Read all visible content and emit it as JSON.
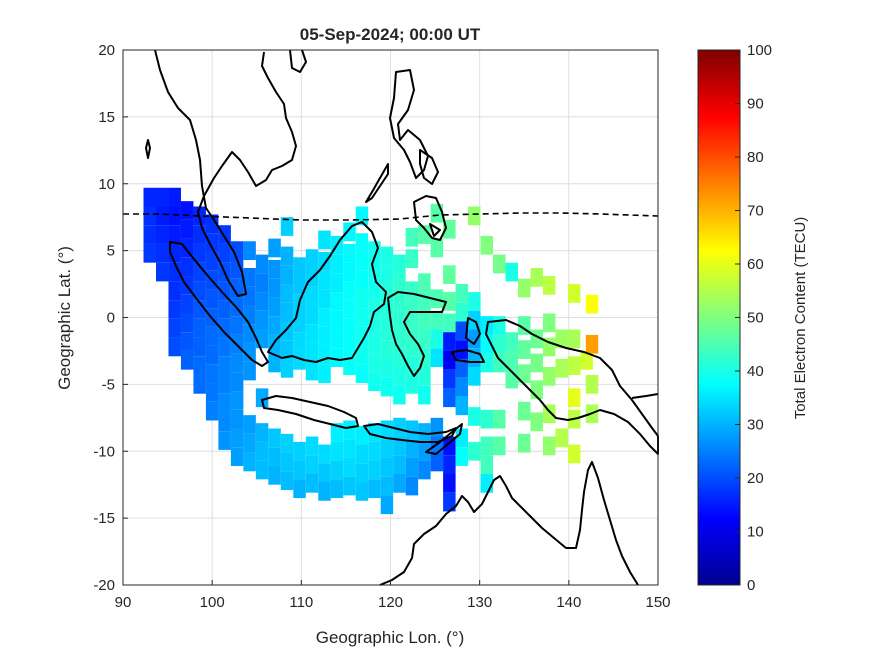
{
  "figure": {
    "title": "05-Sep-2024; 00:00 UT",
    "xlabel": "Geographic Lon. (°)",
    "ylabel": "Geographic Lat. (°)",
    "colorbar_label": "Total Electron Content (TECU)"
  },
  "chart_data": {
    "type": "heatmap",
    "title": "05-Sep-2024; 00:00 UT",
    "xlabel": "Geographic Lon. (°)",
    "ylabel": "Geographic Lat. (°)",
    "xlim": [
      90,
      150
    ],
    "ylim": [
      -20,
      20
    ],
    "xticks": [
      90,
      100,
      110,
      120,
      130,
      140,
      150
    ],
    "yticks": [
      20,
      15,
      10,
      5,
      0,
      -5,
      -10,
      -15,
      -20
    ],
    "grid": true,
    "colormap": "jet",
    "clim": [
      0,
      100
    ],
    "colorbar_ticks": [
      0,
      10,
      20,
      30,
      40,
      50,
      60,
      70,
      80,
      90,
      100
    ],
    "colorbar_label": "Total Electron Content (TECU)",
    "colorbar_placement": "right",
    "cell_size_deg": 1.4,
    "cells": [
      [
        93,
        9,
        16
      ],
      [
        93,
        7.6,
        17
      ],
      [
        93,
        6.2,
        17
      ],
      [
        93,
        4.8,
        18
      ],
      [
        94.4,
        9,
        16
      ],
      [
        94.4,
        7.6,
        15
      ],
      [
        94.4,
        6.2,
        16
      ],
      [
        94.4,
        4.8,
        17
      ],
      [
        94.4,
        3.4,
        18
      ],
      [
        95.8,
        9,
        15
      ],
      [
        95.8,
        7.6,
        14
      ],
      [
        95.8,
        6.2,
        15
      ],
      [
        95.8,
        4.8,
        16
      ],
      [
        95.8,
        3.4,
        17
      ],
      [
        95.8,
        2,
        17
      ],
      [
        95.8,
        0.6,
        18
      ],
      [
        95.8,
        -0.8,
        19
      ],
      [
        95.8,
        -2.2,
        20
      ],
      [
        97.2,
        8,
        14
      ],
      [
        97.2,
        6.6,
        15
      ],
      [
        97.2,
        5.2,
        16
      ],
      [
        97.2,
        3.8,
        17
      ],
      [
        97.2,
        2.4,
        18
      ],
      [
        97.2,
        1,
        19
      ],
      [
        97.2,
        -0.4,
        20
      ],
      [
        97.2,
        -1.8,
        21
      ],
      [
        97.2,
        -3.2,
        22
      ],
      [
        98.6,
        7.6,
        16
      ],
      [
        98.6,
        6.2,
        17
      ],
      [
        98.6,
        4.8,
        18
      ],
      [
        98.6,
        3.4,
        19
      ],
      [
        98.6,
        2,
        20
      ],
      [
        98.6,
        0.6,
        21
      ],
      [
        98.6,
        -0.8,
        22
      ],
      [
        98.6,
        -2.2,
        22
      ],
      [
        98.6,
        -3.6,
        23
      ],
      [
        98.6,
        -5,
        23
      ],
      [
        100,
        7,
        17
      ],
      [
        100,
        5.6,
        18
      ],
      [
        100,
        4.2,
        19
      ],
      [
        100,
        2.8,
        20
      ],
      [
        100,
        1.4,
        21
      ],
      [
        100,
        0,
        22
      ],
      [
        100,
        -1.4,
        23
      ],
      [
        100,
        -2.8,
        23
      ],
      [
        100,
        -4.2,
        24
      ],
      [
        100,
        -5.6,
        24
      ],
      [
        100,
        -7,
        25
      ],
      [
        101.4,
        6.2,
        18
      ],
      [
        101.4,
        4.8,
        19
      ],
      [
        101.4,
        3.4,
        20
      ],
      [
        101.4,
        2,
        21
      ],
      [
        101.4,
        0.6,
        22
      ],
      [
        101.4,
        -0.8,
        23
      ],
      [
        101.4,
        -2.2,
        24
      ],
      [
        101.4,
        -3.6,
        25
      ],
      [
        101.4,
        -5,
        25
      ],
      [
        101.4,
        -6.4,
        26
      ],
      [
        101.4,
        -7.8,
        26
      ],
      [
        101.4,
        -9.2,
        27
      ],
      [
        102.8,
        5,
        20
      ],
      [
        102.8,
        3.6,
        21
      ],
      [
        102.8,
        2.2,
        22
      ],
      [
        102.8,
        0.8,
        23
      ],
      [
        102.8,
        -0.6,
        24
      ],
      [
        102.8,
        -2,
        25
      ],
      [
        102.8,
        -3.4,
        26
      ],
      [
        102.8,
        -4.8,
        26
      ],
      [
        102.8,
        -6.2,
        27
      ],
      [
        102.8,
        -7.6,
        27
      ],
      [
        102.8,
        -9,
        28
      ],
      [
        102.8,
        -10.4,
        28
      ],
      [
        104.2,
        5,
        26
      ],
      [
        104.2,
        3,
        24
      ],
      [
        104.2,
        1.6,
        24
      ],
      [
        104.2,
        0.2,
        25
      ],
      [
        104.2,
        -1.2,
        26
      ],
      [
        104.2,
        -2.6,
        27
      ],
      [
        104.2,
        -4,
        27
      ],
      [
        104.2,
        -8,
        28
      ],
      [
        104.2,
        -9.4,
        29
      ],
      [
        104.2,
        -10.8,
        30
      ],
      [
        105.6,
        4,
        26
      ],
      [
        105.6,
        2.6,
        25
      ],
      [
        105.6,
        1.2,
        26
      ],
      [
        105.6,
        -0.2,
        27
      ],
      [
        105.6,
        -1.6,
        28
      ],
      [
        105.6,
        -6,
        29
      ],
      [
        105.6,
        -8.6,
        30
      ],
      [
        105.6,
        -10,
        31
      ],
      [
        105.6,
        -11.4,
        31
      ],
      [
        107,
        5.2,
        28
      ],
      [
        107,
        3.6,
        27
      ],
      [
        107,
        2.2,
        27
      ],
      [
        107,
        0.8,
        28
      ],
      [
        107,
        -0.6,
        29
      ],
      [
        107,
        -2,
        30
      ],
      [
        107,
        -3.4,
        30
      ],
      [
        107,
        -9,
        32
      ],
      [
        107,
        -10.4,
        31
      ],
      [
        107,
        -11.8,
        30
      ],
      [
        108.4,
        6.8,
        33
      ],
      [
        108.4,
        4.6,
        30
      ],
      [
        108.4,
        3.2,
        30
      ],
      [
        108.4,
        1.8,
        31
      ],
      [
        108.4,
        0.4,
        31
      ],
      [
        108.4,
        -1,
        32
      ],
      [
        108.4,
        -2.4,
        32
      ],
      [
        108.4,
        -3.8,
        33
      ],
      [
        108.4,
        -9.4,
        33
      ],
      [
        108.4,
        -10.8,
        32
      ],
      [
        108.4,
        -12.2,
        31
      ],
      [
        109.8,
        3.8,
        32
      ],
      [
        109.8,
        2.4,
        32
      ],
      [
        109.8,
        1,
        33
      ],
      [
        109.8,
        -0.4,
        33
      ],
      [
        109.8,
        -1.8,
        34
      ],
      [
        109.8,
        -3.2,
        34
      ],
      [
        109.8,
        -10,
        33
      ],
      [
        109.8,
        -11.4,
        32
      ],
      [
        109.8,
        -12.8,
        30
      ],
      [
        111.2,
        4.4,
        33
      ],
      [
        111.2,
        3,
        33
      ],
      [
        111.2,
        1.6,
        34
      ],
      [
        111.2,
        0.2,
        34
      ],
      [
        111.2,
        -1.2,
        35
      ],
      [
        111.2,
        -2.6,
        35
      ],
      [
        111.2,
        -4,
        35
      ],
      [
        111.2,
        -9.6,
        34
      ],
      [
        111.2,
        -11,
        33
      ],
      [
        111.2,
        -12.4,
        31
      ],
      [
        112.6,
        5.8,
        35
      ],
      [
        112.6,
        4.2,
        34
      ],
      [
        112.6,
        2.8,
        35
      ],
      [
        112.6,
        1.4,
        35
      ],
      [
        112.6,
        0,
        36
      ],
      [
        112.6,
        -1.4,
        36
      ],
      [
        112.6,
        -2.8,
        36
      ],
      [
        112.6,
        -4.2,
        36
      ],
      [
        112.6,
        -10.2,
        34
      ],
      [
        112.6,
        -11.6,
        32
      ],
      [
        112.6,
        -13,
        30
      ],
      [
        114,
        5.4,
        36
      ],
      [
        114,
        4,
        36
      ],
      [
        114,
        2.6,
        36
      ],
      [
        114,
        1.2,
        37
      ],
      [
        114,
        -0.2,
        37
      ],
      [
        114,
        -1.6,
        37
      ],
      [
        114,
        -3,
        37
      ],
      [
        114,
        -8.6,
        36
      ],
      [
        114,
        -10,
        35
      ],
      [
        114,
        -11.4,
        33
      ],
      [
        114,
        -12.8,
        31
      ],
      [
        115.4,
        6.4,
        37
      ],
      [
        115.4,
        4.8,
        37
      ],
      [
        115.4,
        3.4,
        37
      ],
      [
        115.4,
        2,
        38
      ],
      [
        115.4,
        0.6,
        38
      ],
      [
        115.4,
        -0.8,
        38
      ],
      [
        115.4,
        -2.2,
        38
      ],
      [
        115.4,
        -3.6,
        38
      ],
      [
        115.4,
        -8.4,
        36
      ],
      [
        115.4,
        -9.8,
        35
      ],
      [
        115.4,
        -11.2,
        34
      ],
      [
        115.4,
        -12.6,
        32
      ],
      [
        116.8,
        7.6,
        37
      ],
      [
        116.8,
        5.6,
        38
      ],
      [
        116.8,
        4.2,
        38
      ],
      [
        116.8,
        2.8,
        38
      ],
      [
        116.8,
        1.4,
        39
      ],
      [
        116.8,
        0,
        39
      ],
      [
        116.8,
        -1.4,
        39
      ],
      [
        116.8,
        -2.8,
        39
      ],
      [
        116.8,
        -4.2,
        38
      ],
      [
        116.8,
        -8.8,
        36
      ],
      [
        116.8,
        -10.2,
        34
      ],
      [
        116.8,
        -11.6,
        33
      ],
      [
        116.8,
        -13,
        32
      ],
      [
        118.2,
        5,
        39
      ],
      [
        118.2,
        3.6,
        39
      ],
      [
        118.2,
        2.2,
        39
      ],
      [
        118.2,
        0.8,
        40
      ],
      [
        118.2,
        -0.6,
        40
      ],
      [
        118.2,
        -2,
        40
      ],
      [
        118.2,
        -3.4,
        40
      ],
      [
        118.2,
        -4.8,
        39
      ],
      [
        118.2,
        -8.6,
        35
      ],
      [
        118.2,
        -10,
        34
      ],
      [
        118.2,
        -11.4,
        33
      ],
      [
        118.2,
        -12.8,
        31
      ],
      [
        119.6,
        4.6,
        40
      ],
      [
        119.6,
        3.2,
        40
      ],
      [
        119.6,
        1.8,
        41
      ],
      [
        119.6,
        0.4,
        41
      ],
      [
        119.6,
        -1,
        41
      ],
      [
        119.6,
        -2.4,
        41
      ],
      [
        119.6,
        -3.8,
        40
      ],
      [
        119.6,
        -5.2,
        39
      ],
      [
        119.6,
        -8.4,
        34
      ],
      [
        119.6,
        -9.8,
        33
      ],
      [
        119.6,
        -11.2,
        32
      ],
      [
        119.6,
        -12.6,
        31
      ],
      [
        119.6,
        -14,
        29
      ],
      [
        121,
        4,
        41
      ],
      [
        121,
        2.6,
        42
      ],
      [
        121,
        1.2,
        42
      ],
      [
        121,
        -0.2,
        42
      ],
      [
        121,
        -1.6,
        42
      ],
      [
        121,
        -3,
        41
      ],
      [
        121,
        -4.4,
        40
      ],
      [
        121,
        -5.8,
        39
      ],
      [
        121,
        -8.2,
        33
      ],
      [
        121,
        -9.6,
        32
      ],
      [
        121,
        -11,
        31
      ],
      [
        121,
        -12.4,
        29
      ],
      [
        122.4,
        6,
        44
      ],
      [
        122.4,
        4.4,
        43
      ],
      [
        122.4,
        2,
        43
      ],
      [
        122.4,
        0.6,
        43
      ],
      [
        122.4,
        -0.8,
        43
      ],
      [
        122.4,
        -2.2,
        42
      ],
      [
        122.4,
        -3.6,
        41
      ],
      [
        122.4,
        -5,
        40
      ],
      [
        122.4,
        -8.4,
        32
      ],
      [
        122.4,
        -9.8,
        30
      ],
      [
        122.4,
        -11.2,
        28
      ],
      [
        122.4,
        -12.6,
        26
      ],
      [
        123.8,
        6.2,
        46
      ],
      [
        123.8,
        2.6,
        45
      ],
      [
        123.8,
        1.2,
        44
      ],
      [
        123.8,
        -0.2,
        44
      ],
      [
        123.8,
        -1.6,
        43
      ],
      [
        123.8,
        -3,
        42
      ],
      [
        123.8,
        -4.4,
        41
      ],
      [
        123.8,
        -5.8,
        39
      ],
      [
        123.8,
        -8.6,
        30
      ],
      [
        123.8,
        -10,
        28
      ],
      [
        123.8,
        -11.4,
        26
      ],
      [
        125.2,
        7.8,
        46
      ],
      [
        125.2,
        5.2,
        46
      ],
      [
        125.2,
        1.4,
        45
      ],
      [
        125.2,
        -0.2,
        44
      ],
      [
        125.2,
        -1.6,
        40
      ],
      [
        125.2,
        -3,
        35
      ],
      [
        125.2,
        -8.2,
        27
      ],
      [
        125.2,
        -9.6,
        24
      ],
      [
        125.2,
        -10.8,
        22
      ],
      [
        126.6,
        6.6,
        47
      ],
      [
        126.6,
        3.2,
        47
      ],
      [
        126.6,
        1.2,
        46
      ],
      [
        126.6,
        -0.4,
        44
      ],
      [
        126.6,
        -1.8,
        15
      ],
      [
        126.6,
        -3.2,
        12
      ],
      [
        126.6,
        -4.6,
        18
      ],
      [
        126.6,
        -6,
        22
      ],
      [
        126.6,
        -9.6,
        14
      ],
      [
        126.6,
        -11,
        16
      ],
      [
        126.6,
        -12.4,
        14
      ],
      [
        126.6,
        -13.8,
        18
      ],
      [
        128,
        1.8,
        44
      ],
      [
        128,
        0.4,
        42
      ],
      [
        128,
        -1,
        20
      ],
      [
        128,
        -2.4,
        14
      ],
      [
        128,
        -3.8,
        22
      ],
      [
        128,
        -5.2,
        26
      ],
      [
        128,
        -6.6,
        30
      ],
      [
        128,
        -9,
        36
      ],
      [
        128,
        -10.4,
        38
      ],
      [
        129.4,
        7.6,
        52
      ],
      [
        129.4,
        1.2,
        40
      ],
      [
        129.4,
        -0.2,
        33
      ],
      [
        129.4,
        -1.6,
        28
      ],
      [
        129.4,
        -3,
        30
      ],
      [
        129.4,
        -4.4,
        34
      ],
      [
        129.4,
        -7.4,
        40
      ],
      [
        129.4,
        -10,
        42
      ],
      [
        130.8,
        5.4,
        50
      ],
      [
        130.8,
        -0.6,
        36
      ],
      [
        130.8,
        -2,
        38
      ],
      [
        130.8,
        -3.4,
        40
      ],
      [
        130.8,
        -7.6,
        42
      ],
      [
        130.8,
        -9.6,
        44
      ],
      [
        130.8,
        -11,
        44
      ],
      [
        130.8,
        -12.4,
        36
      ],
      [
        132.2,
        4,
        49
      ],
      [
        132.2,
        -0.6,
        40
      ],
      [
        132.2,
        -2,
        42
      ],
      [
        132.2,
        -3.4,
        44
      ],
      [
        132.2,
        -7.6,
        46
      ],
      [
        132.2,
        -9.6,
        46
      ],
      [
        133.6,
        3.4,
        40
      ],
      [
        133.6,
        -1.8,
        44
      ],
      [
        133.6,
        -3.2,
        45
      ],
      [
        133.6,
        -4.6,
        46
      ],
      [
        135,
        2.2,
        52
      ],
      [
        135,
        -0.6,
        46
      ],
      [
        135,
        -2.4,
        47
      ],
      [
        135,
        -4.2,
        48
      ],
      [
        135,
        -7,
        48
      ],
      [
        135,
        -9.4,
        48
      ],
      [
        136.4,
        3,
        54
      ],
      [
        136.4,
        -1.6,
        48
      ],
      [
        136.4,
        -3.4,
        49
      ],
      [
        136.4,
        -5.4,
        50
      ],
      [
        136.4,
        -7.8,
        50
      ],
      [
        137.8,
        2.4,
        56
      ],
      [
        137.8,
        -0.4,
        50
      ],
      [
        137.8,
        -2.2,
        52
      ],
      [
        137.8,
        -4.4,
        52
      ],
      [
        137.8,
        -7.2,
        54
      ],
      [
        137.8,
        -9.6,
        52
      ],
      [
        139.2,
        -1.6,
        53
      ],
      [
        139.2,
        -3.8,
        54
      ],
      [
        139.2,
        -9,
        55
      ],
      [
        140.6,
        1.8,
        58
      ],
      [
        140.6,
        -1.6,
        54
      ],
      [
        140.6,
        -3.6,
        56
      ],
      [
        140.6,
        -6,
        60
      ],
      [
        140.6,
        -7.6,
        56
      ],
      [
        140.6,
        -10.2,
        58
      ],
      [
        142,
        -3.2,
        58
      ],
      [
        142.6,
        1,
        62
      ],
      [
        142.6,
        -2,
        72
      ],
      [
        142.6,
        -5,
        55
      ],
      [
        142.6,
        -7.2,
        54
      ]
    ],
    "overlays": [
      {
        "name": "coastlines",
        "style": "solid-black"
      },
      {
        "name": "magnetic-equator",
        "style": "dashed-black"
      }
    ]
  }
}
